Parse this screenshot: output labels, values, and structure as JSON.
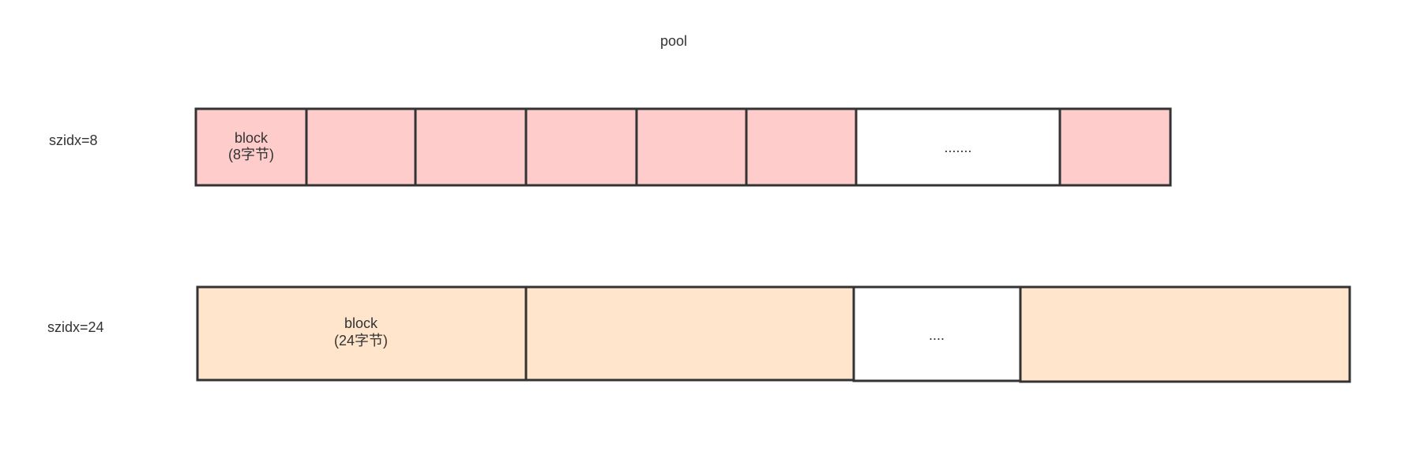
{
  "title": "pool",
  "rows": [
    {
      "label": "szidx=8",
      "block": [
        "block",
        "(8字节)"
      ],
      "ellipsis": "......."
    },
    {
      "label": "szidx=24",
      "block": [
        "block",
        "(24字节)"
      ],
      "ellipsis": "...."
    }
  ]
}
